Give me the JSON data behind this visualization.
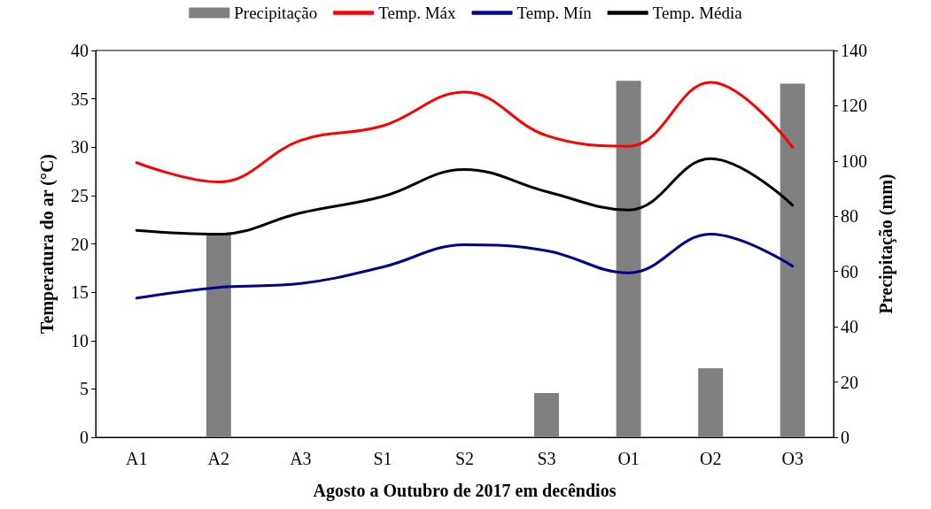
{
  "chart_data": {
    "type": "line",
    "xlabel": "Agosto a Outubro de 2017 em decêndios",
    "ylabel": "Temperatura do ar (°C)",
    "y2label": "Precipitação (mm)",
    "categories": [
      "A1",
      "A2",
      "A3",
      "S1",
      "S2",
      "S3",
      "O1",
      "O2",
      "O3"
    ],
    "ylim": [
      0,
      40
    ],
    "yticks": [
      0,
      5,
      10,
      15,
      20,
      25,
      30,
      35,
      40
    ],
    "y2lim": [
      0,
      140
    ],
    "y2ticks": [
      0,
      20,
      40,
      60,
      80,
      100,
      120,
      140
    ],
    "legend": "top",
    "grid": false,
    "marker": "none",
    "line_style": "solid",
    "series": [
      {
        "name": "Precipitação",
        "type": "bar",
        "axis": "y2",
        "color": "#808080",
        "values": [
          0,
          74,
          0,
          0,
          0,
          16,
          129,
          25,
          128
        ]
      },
      {
        "name": "Temp. Máx",
        "color": "#ff0000",
        "values": [
          28.4,
          26.4,
          30.7,
          32.2,
          35.7,
          31.2,
          30.1,
          36.7,
          30.0
        ]
      },
      {
        "name": "Temp. Mín",
        "color": "#00008b",
        "values": [
          14.4,
          15.5,
          15.9,
          17.6,
          19.9,
          19.3,
          17.0,
          21.0,
          17.7
        ]
      },
      {
        "name": "Temp. Média",
        "color": "#000000",
        "values": [
          21.4,
          21.0,
          23.2,
          24.9,
          27.7,
          25.4,
          23.5,
          28.8,
          24.0
        ]
      }
    ]
  }
}
